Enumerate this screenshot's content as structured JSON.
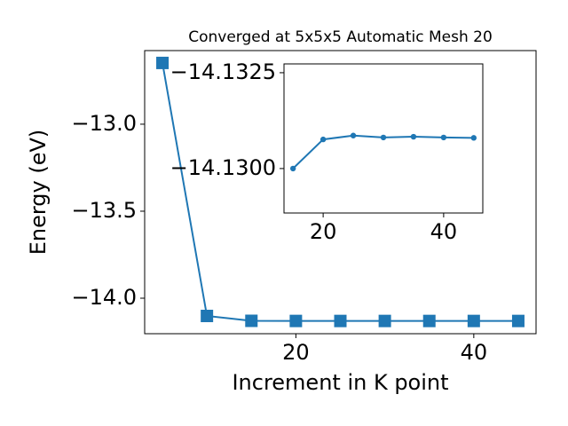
{
  "chart_data": [
    {
      "type": "line",
      "title": "Converged at 5x5x5 Automatic Mesh 20",
      "x_label": "Increment in K point",
      "y_label": "Energy (eV)",
      "marker": "square",
      "x": [
        5,
        10,
        15,
        20,
        25,
        30,
        35,
        40,
        45
      ],
      "series": [
        {
          "color": "#1f77b4",
          "values": [
            -12.648,
            -14.102,
            -14.13,
            -14.13076,
            -14.13086,
            -14.13081,
            -14.13083,
            -14.13081,
            -14.1308
          ]
        }
      ],
      "xlim": [
        3,
        47
      ],
      "xticks": [
        20,
        40
      ],
      "ylim": [
        -14.204,
        -12.577
      ],
      "yticks": [
        {
          "value": -13,
          "label": "−13.0"
        },
        {
          "value": -13.5,
          "label": "−13.5"
        },
        {
          "value": -14,
          "label": "−14.0"
        }
      ]
    },
    {
      "type": "line",
      "marker": "circle",
      "x": [
        15,
        20,
        25,
        30,
        35,
        40,
        45
      ],
      "series": [
        {
          "color": "#1f77b4",
          "values": [
            -14.13,
            -14.13076,
            -14.13086,
            -14.13081,
            -14.13083,
            -14.13081,
            -14.1308
          ]
        }
      ],
      "xlim": [
        13.5,
        46.5
      ],
      "xticks": [
        20,
        40
      ],
      "ylim": [
        -14.12884,
        -14.13273
      ],
      "yticks": [
        {
          "value": -14.1325,
          "label": "−14.1325"
        },
        {
          "value": -14.13,
          "label": "−14.1300"
        }
      ]
    }
  ]
}
